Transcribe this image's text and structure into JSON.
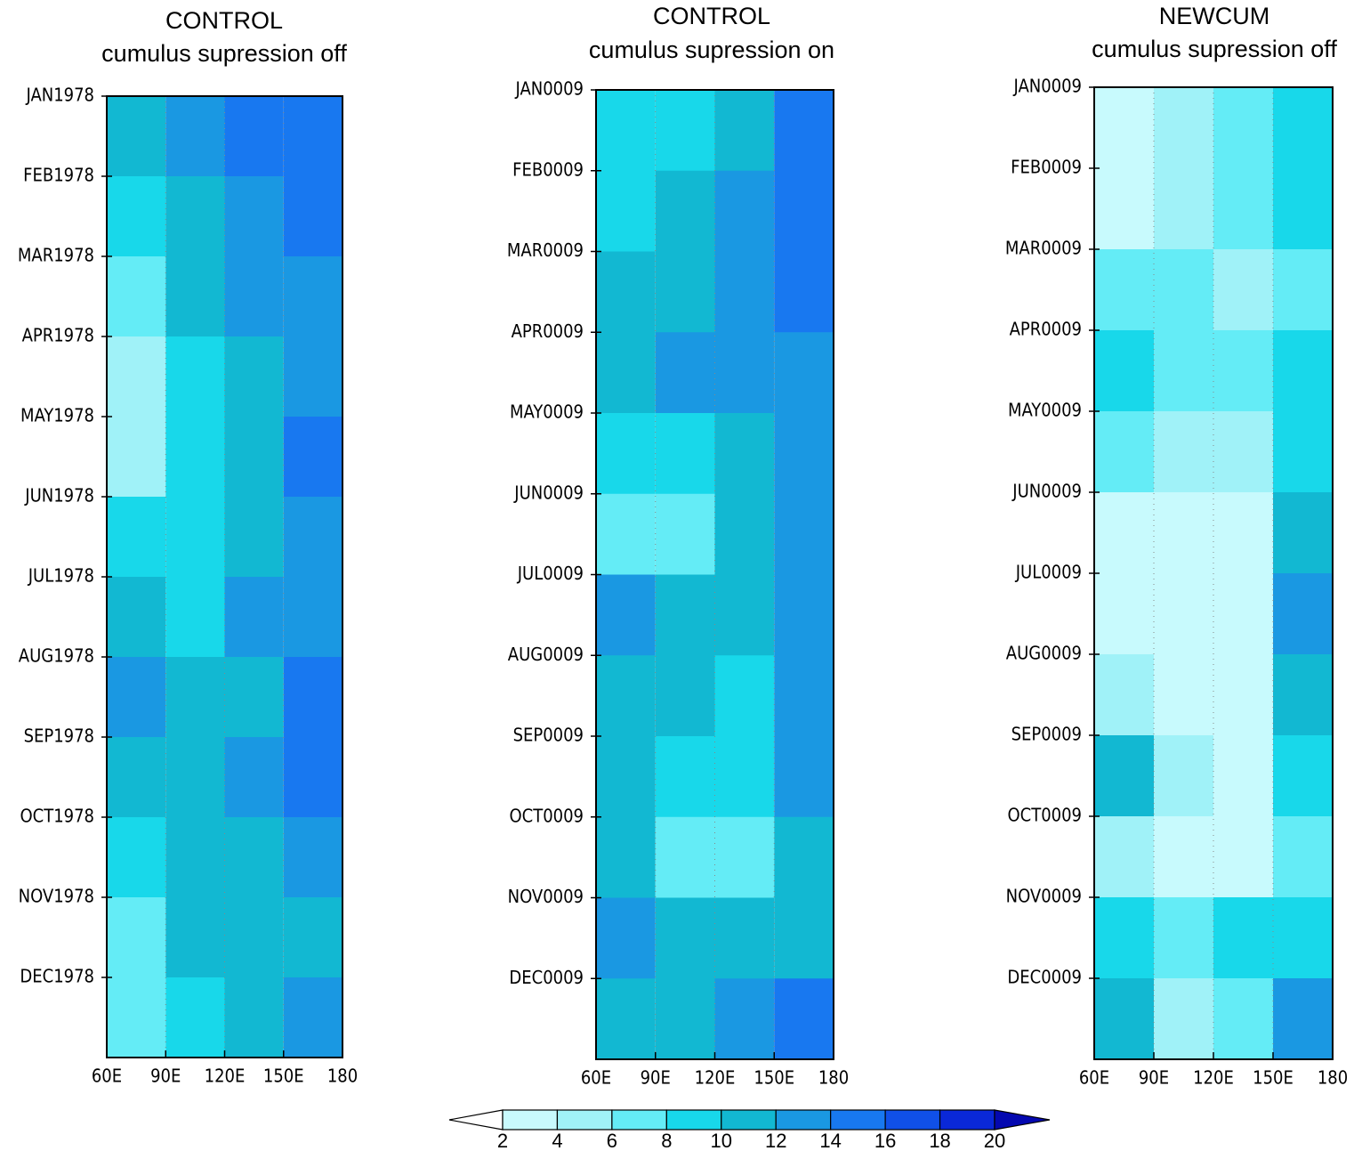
{
  "chart_data": [
    {
      "type": "heatmap",
      "title": "CONTROL",
      "subtitle": "cumulus supression off",
      "y_categories": [
        "JAN1978",
        "FEB1978",
        "MAR1978",
        "APR1978",
        "MAY1978",
        "JUN1978",
        "JUL1978",
        "AUG1978",
        "SEP1978",
        "OCT1978",
        "NOV1978",
        "DEC1978"
      ],
      "xlim": [
        60,
        180
      ],
      "xticks": [
        {
          "value": 60,
          "label": "60E"
        },
        {
          "value": 90,
          "label": "90E"
        },
        {
          "value": 120,
          "label": "120E"
        },
        {
          "value": 150,
          "label": "150E"
        },
        180
      ],
      "x_edges": [
        60,
        90,
        120,
        150,
        180
      ],
      "z": [
        [
          10,
          12,
          14,
          14
        ],
        [
          8,
          10,
          12,
          14
        ],
        [
          6,
          10,
          12,
          12
        ],
        [
          4,
          8,
          10,
          12
        ],
        [
          4,
          8,
          10,
          14
        ],
        [
          8,
          8,
          10,
          12
        ],
        [
          10,
          8,
          12,
          12
        ],
        [
          12,
          10,
          10,
          14
        ],
        [
          10,
          10,
          12,
          14
        ],
        [
          8,
          10,
          10,
          12
        ],
        [
          6,
          10,
          10,
          10
        ],
        [
          6,
          8,
          10,
          12
        ]
      ],
      "grid": true
    },
    {
      "type": "heatmap",
      "title": "CONTROL",
      "subtitle": "cumulus supression on",
      "y_categories": [
        "JAN0009",
        "FEB0009",
        "MAR0009",
        "APR0009",
        "MAY0009",
        "JUN0009",
        "JUL0009",
        "AUG0009",
        "SEP0009",
        "OCT0009",
        "NOV0009",
        "DEC0009"
      ],
      "xlim": [
        60,
        180
      ],
      "xticks": [
        {
          "value": 60,
          "label": "60E"
        },
        {
          "value": 90,
          "label": "90E"
        },
        {
          "value": 120,
          "label": "120E"
        },
        {
          "value": 150,
          "label": "150E"
        },
        180
      ],
      "x_edges": [
        60,
        90,
        120,
        150,
        180
      ],
      "z": [
        [
          8,
          8,
          10,
          14
        ],
        [
          8,
          10,
          12,
          14
        ],
        [
          10,
          10,
          12,
          14
        ],
        [
          10,
          12,
          12,
          12
        ],
        [
          8,
          8,
          10,
          12
        ],
        [
          6,
          6,
          10,
          12
        ],
        [
          12,
          10,
          10,
          12
        ],
        [
          10,
          10,
          8,
          12
        ],
        [
          10,
          8,
          8,
          12
        ],
        [
          10,
          6,
          6,
          10
        ],
        [
          12,
          10,
          10,
          10
        ],
        [
          10,
          10,
          12,
          14
        ]
      ],
      "grid": true
    },
    {
      "type": "heatmap",
      "title": "NEWCUM",
      "subtitle": "cumulus supression off",
      "y_categories": [
        "JAN0009",
        "FEB0009",
        "MAR0009",
        "APR0009",
        "MAY0009",
        "JUN0009",
        "JUL0009",
        "AUG0009",
        "SEP0009",
        "OCT0009",
        "NOV0009",
        "DEC0009"
      ],
      "xlim": [
        60,
        180
      ],
      "xticks": [
        {
          "value": 60,
          "label": "60E"
        },
        {
          "value": 90,
          "label": "90E"
        },
        {
          "value": 120,
          "label": "120E"
        },
        {
          "value": 150,
          "label": "150E"
        },
        180
      ],
      "x_edges": [
        60,
        90,
        120,
        150,
        180
      ],
      "z": [
        [
          2,
          4,
          6,
          8
        ],
        [
          2,
          4,
          6,
          8
        ],
        [
          6,
          6,
          4,
          6
        ],
        [
          8,
          6,
          6,
          8
        ],
        [
          6,
          4,
          4,
          8
        ],
        [
          2,
          2,
          2,
          10
        ],
        [
          2,
          2,
          2,
          12
        ],
        [
          4,
          2,
          2,
          10
        ],
        [
          10,
          4,
          2,
          8
        ],
        [
          4,
          2,
          2,
          6
        ],
        [
          8,
          6,
          8,
          8
        ],
        [
          10,
          4,
          6,
          12
        ]
      ],
      "grid": true
    }
  ],
  "colorbar": {
    "levels": [
      2,
      4,
      6,
      8,
      10,
      12,
      14,
      16,
      18,
      20
    ],
    "colors": [
      "#ffffff",
      "#c8fafd",
      "#a0f2f8",
      "#64ecf6",
      "#18d8ea",
      "#12b8d2",
      "#1a98e2",
      "#1878f0",
      "#1050e8",
      "#0a28d8",
      "#0408b0"
    ]
  }
}
